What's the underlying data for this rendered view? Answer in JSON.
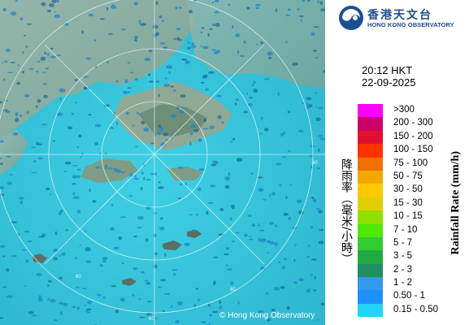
{
  "map": {
    "copyright": "© Hong Kong Observatory",
    "range_rings": [
      "60",
      "60",
      "60",
      "60"
    ]
  },
  "header": {
    "logo_chinese": "香港天文台",
    "logo_english": "HONG KONG OBSERVATORY",
    "time": "20:12 HKT",
    "date": "22-09-2025"
  },
  "legend": {
    "title_chinese": "降雨率（毫米/小時）",
    "title_english": "Rainfall Rate (mm/h)",
    "items": [
      {
        "range": ">300",
        "color": "#ff00ff"
      },
      {
        "range": "200 - 300",
        "color": "#cc0066"
      },
      {
        "range": "150 - 200",
        "color": "#e0102e"
      },
      {
        "range": "100 - 150",
        "color": "#ff3300"
      },
      {
        "range": "75 - 100",
        "color": "#f07000"
      },
      {
        "range": "50 - 75",
        "color": "#f2a800"
      },
      {
        "range": "30 - 50",
        "color": "#ffc800"
      },
      {
        "range": "15 - 30",
        "color": "#e0d000"
      },
      {
        "range": "10 - 15",
        "color": "#90e000"
      },
      {
        "range": "7 - 10",
        "color": "#4fe800"
      },
      {
        "range": "5 - 7",
        "color": "#33cc33"
      },
      {
        "range": "3 - 5",
        "color": "#22aa44"
      },
      {
        "range": "2 - 3",
        "color": "#1f8f66"
      },
      {
        "range": "1 - 2",
        "color": "#3399ee"
      },
      {
        "range": "0.50 - 1",
        "color": "#1e90ff"
      },
      {
        "range": "0.15 - 0.50",
        "color": "#22d4f8"
      }
    ]
  }
}
